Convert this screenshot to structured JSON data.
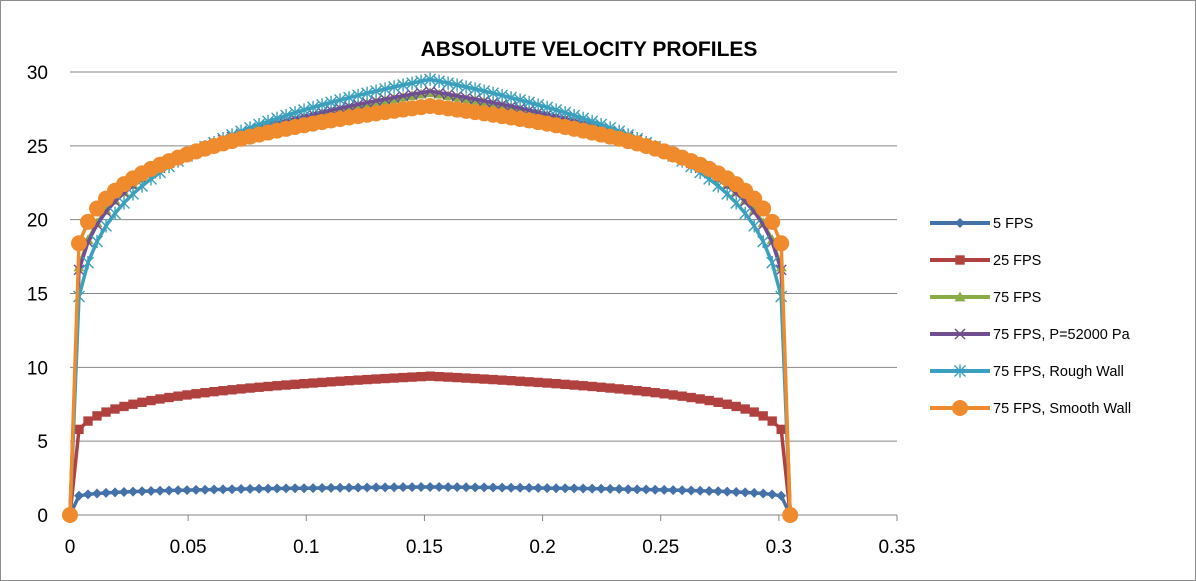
{
  "chart_data": {
    "type": "scatter",
    "title": "ABSOLUTE VELOCITY PROFILES",
    "xlabel": "",
    "ylabel": "",
    "xlim": [
      0,
      0.35
    ],
    "ylim": [
      0,
      30
    ],
    "x_ticks": [
      "0",
      "0.05",
      "0.1",
      "0.15",
      "0.2",
      "0.25",
      "0.3",
      "0.35"
    ],
    "y_ticks": [
      "0",
      "5",
      "10",
      "15",
      "20",
      "25",
      "30"
    ],
    "grid": "horizontal",
    "legend_position": "right",
    "profile": {
      "x_range": [
        0,
        0.3048
      ],
      "points": 81,
      "shape_exponent": 0.12
    },
    "series": [
      {
        "name": "5 FPS",
        "color": "#4472a8",
        "marker": "diamond",
        "wall_value": 0,
        "near_wall": 1.3,
        "center": 1.9
      },
      {
        "name": "25 FPS",
        "color": "#b0413e",
        "marker": "square",
        "wall_value": 0,
        "near_wall": 5.8,
        "center": 9.4
      },
      {
        "name": "75 FPS",
        "color": "#8aac46",
        "marker": "triangle",
        "wall_value": 0,
        "near_wall": 16.8,
        "center": 28.6
      },
      {
        "name": "75 FPS, P=52000 Pa",
        "color": "#6f4e92",
        "marker": "x",
        "wall_value": 0,
        "near_wall": 16.6,
        "center": 28.7
      },
      {
        "name": "75 FPS, Rough Wall",
        "color": "#3aa0bd",
        "marker": "star",
        "wall_value": 0,
        "near_wall": 14.8,
        "center": 29.5
      },
      {
        "name": "75 FPS, Smooth Wall",
        "color": "#ef8b2c",
        "marker": "circle",
        "wall_value": 0,
        "near_wall": 18.4,
        "center": 27.7
      }
    ]
  }
}
